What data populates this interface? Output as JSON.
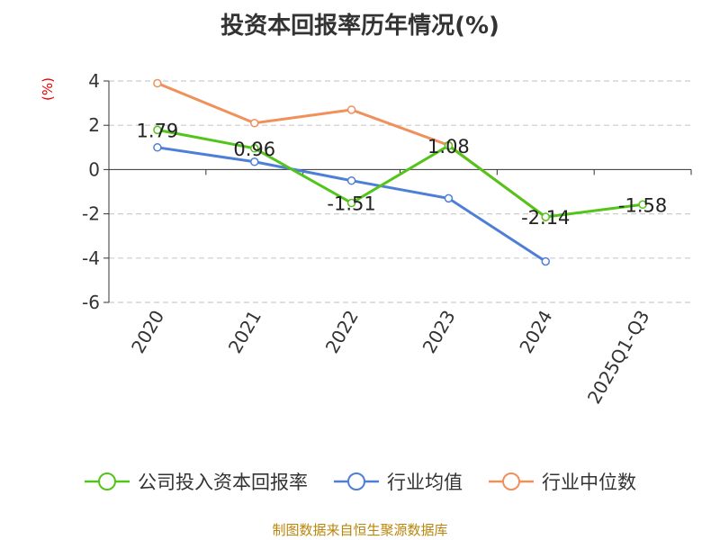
{
  "chart_data": {
    "type": "line",
    "title": "投资本回报率历年情况(%)",
    "ylabel": "(%)",
    "xlabel": "",
    "categories": [
      "2020",
      "2021",
      "2022",
      "2023",
      "2024",
      "2025Q1-Q3"
    ],
    "ylim": [
      -6,
      4
    ],
    "yticks": [
      4,
      2,
      0,
      -2,
      -4,
      -6
    ],
    "grid": true,
    "legend_position": "bottom",
    "series": [
      {
        "name": "公司投入资本回报率",
        "color": "#52c41a",
        "values": [
          1.79,
          0.96,
          -1.51,
          1.08,
          -2.14,
          -1.58
        ],
        "labels": [
          "1.79",
          "0.96",
          "-1.51",
          "1.08",
          "-2.14",
          "-1.58"
        ]
      },
      {
        "name": "行业均值",
        "color": "#4e7fd6",
        "values": [
          1.0,
          0.35,
          -0.5,
          -1.3,
          -4.15,
          null
        ]
      },
      {
        "name": "行业中位数",
        "color": "#f0905a",
        "values": [
          3.9,
          2.1,
          2.7,
          1.1,
          -2.15,
          null
        ]
      }
    ]
  },
  "footer": {
    "source": "制图数据来自恒生聚源数据库"
  }
}
